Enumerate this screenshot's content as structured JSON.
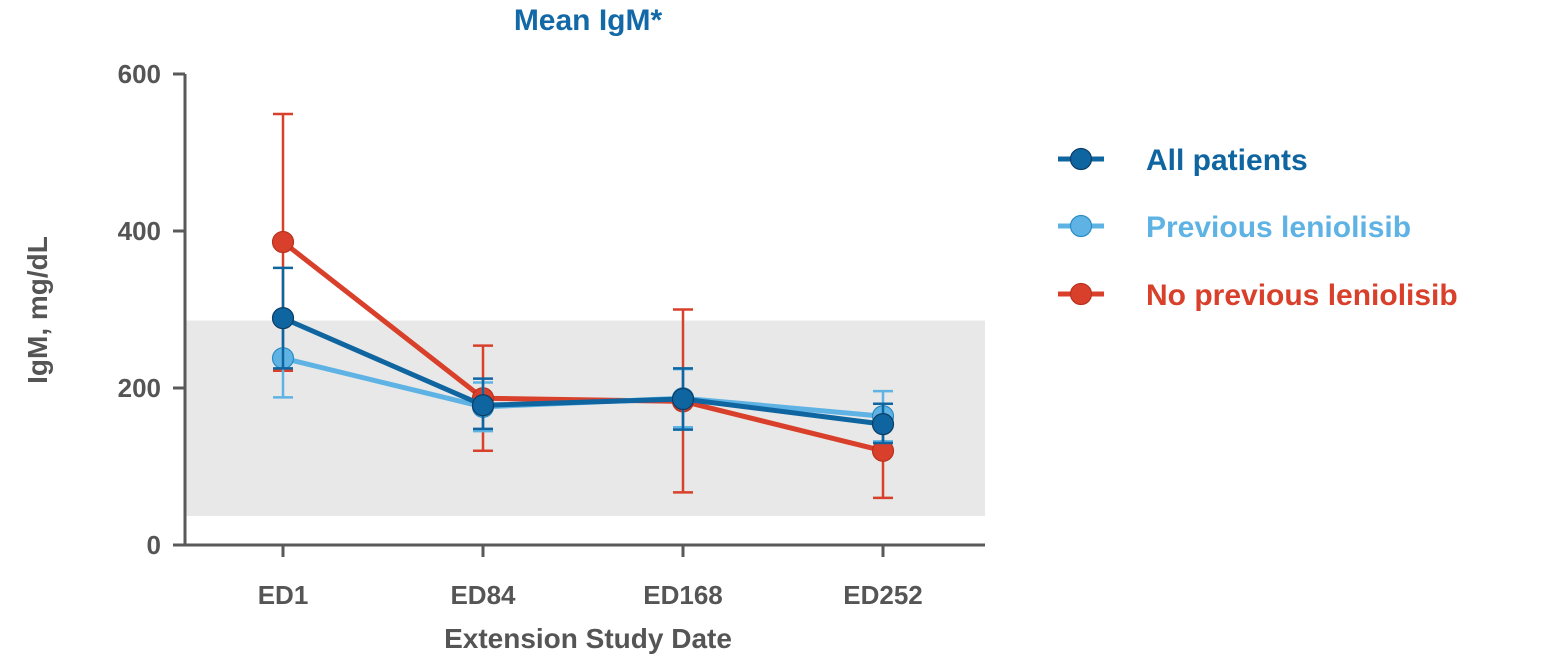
{
  "chart_data": {
    "type": "line",
    "title": "Mean IgM*",
    "xlabel": "Extension Study Date",
    "ylabel": "IgM, mg/dL",
    "categories": [
      "ED1",
      "ED84",
      "ED168",
      "ED252"
    ],
    "ylim": [
      0,
      600
    ],
    "yticks": [
      0,
      200,
      400,
      600
    ],
    "grid": false,
    "legend_position": "right",
    "reference_band": {
      "low": 37,
      "high": 286,
      "color": "#e8e8e8"
    },
    "series": [
      {
        "name": "No previous leniolisib",
        "color": "#d9402b",
        "values": [
          386,
          187,
          183,
          120
        ],
        "err_low": [
          222,
          120,
          67,
          60
        ],
        "err_high": [
          549,
          254,
          300,
          180
        ]
      },
      {
        "name": "Previous leniolisib",
        "color": "#5eb3e4",
        "values": [
          238,
          176,
          187,
          164
        ],
        "err_low": [
          188,
          145,
          150,
          132
        ],
        "err_high": [
          288,
          207,
          224,
          196
        ]
      },
      {
        "name": "All patients",
        "color": "#0f65a0",
        "values": [
          289,
          178,
          186,
          154
        ],
        "err_low": [
          225,
          148,
          147,
          130
        ],
        "err_high": [
          353,
          212,
          225,
          180
        ]
      }
    ]
  }
}
